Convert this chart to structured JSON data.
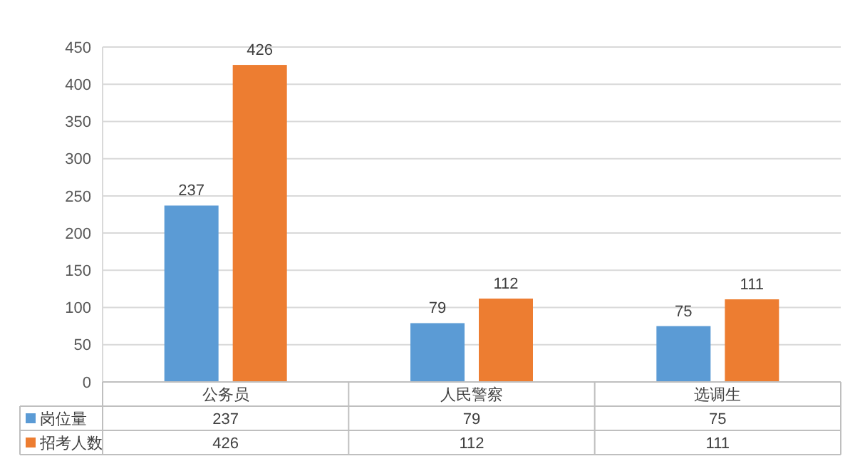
{
  "chart_data": {
    "type": "bar",
    "categories": [
      "公务员",
      "人民警察",
      "选调生"
    ],
    "series": [
      {
        "name": "岗位量",
        "color": "#5b9bd5",
        "values": [
          237,
          79,
          75
        ],
        "value_labels": [
          "237",
          "79",
          "75"
        ]
      },
      {
        "name": "招考人数",
        "color": "#ed7d31",
        "values": [
          426,
          112,
          111
        ],
        "value_labels": [
          "426",
          "112",
          "111"
        ]
      }
    ],
    "ylim": [
      0,
      450
    ],
    "yticks": [
      0,
      50,
      100,
      150,
      200,
      250,
      300,
      350,
      400,
      450
    ],
    "grid": "y",
    "legend": "bottom",
    "annotations": [
      "237",
      "79",
      "75",
      "426",
      "112",
      "111"
    ]
  }
}
